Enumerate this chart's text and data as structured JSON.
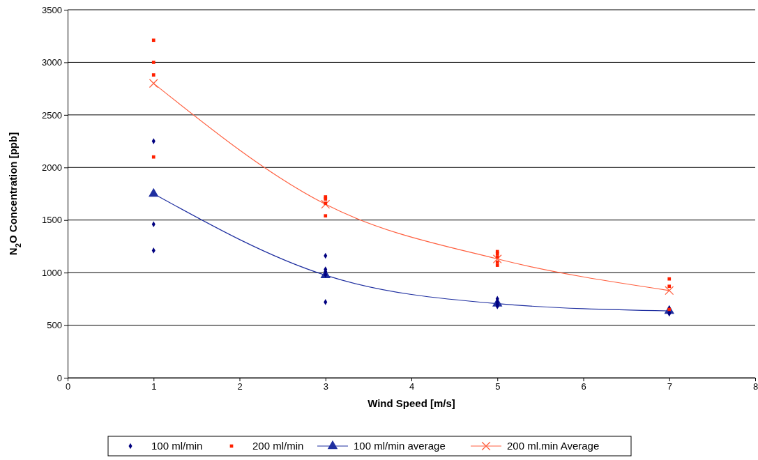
{
  "chart_data": {
    "type": "scatter",
    "xlabel": "Wind Speed [m/s]",
    "ylabel": "N$_{2}$O Concentration [ppb]",
    "xlim": [
      0,
      8
    ],
    "xticks": [
      0,
      1,
      2,
      3,
      4,
      5,
      6,
      7,
      8
    ],
    "ylim": [
      0,
      3500
    ],
    "yticks": [
      0,
      500,
      1000,
      1500,
      2000,
      2500,
      3000,
      3500
    ],
    "grid": "y",
    "legend": "bottom",
    "series": [
      {
        "name": "100 ml/min",
        "marker": "diamond",
        "color": "#000080",
        "x": [
          1,
          1,
          1,
          3,
          3,
          3,
          3,
          3,
          5,
          5,
          5,
          5,
          7,
          7,
          7
        ],
        "values": [
          2250,
          1460,
          1210,
          1160,
          1030,
          1010,
          980,
          720,
          750,
          720,
          700,
          680,
          660,
          620,
          610
        ]
      },
      {
        "name": "200 ml/min",
        "marker": "square",
        "color": "#ff2000",
        "x": [
          1,
          1,
          1,
          1,
          3,
          3,
          3,
          3,
          5,
          5,
          5,
          5,
          5,
          7,
          7,
          7
        ],
        "values": [
          3210,
          3000,
          2880,
          2100,
          1720,
          1700,
          1660,
          1540,
          1200,
          1180,
          1150,
          1100,
          1070,
          940,
          870,
          650
        ]
      },
      {
        "name": "100 ml/min average",
        "type": "line",
        "marker": "triangle",
        "color": "#1f2fa0",
        "x": [
          1,
          3,
          5,
          7
        ],
        "values": [
          1750,
          975,
          705,
          635
        ]
      },
      {
        "name": "200 ml.min Average",
        "type": "line",
        "marker": "cross",
        "color": "#ff6040",
        "x": [
          1,
          3,
          5,
          7
        ],
        "values": [
          2800,
          1650,
          1130,
          830
        ]
      }
    ]
  }
}
